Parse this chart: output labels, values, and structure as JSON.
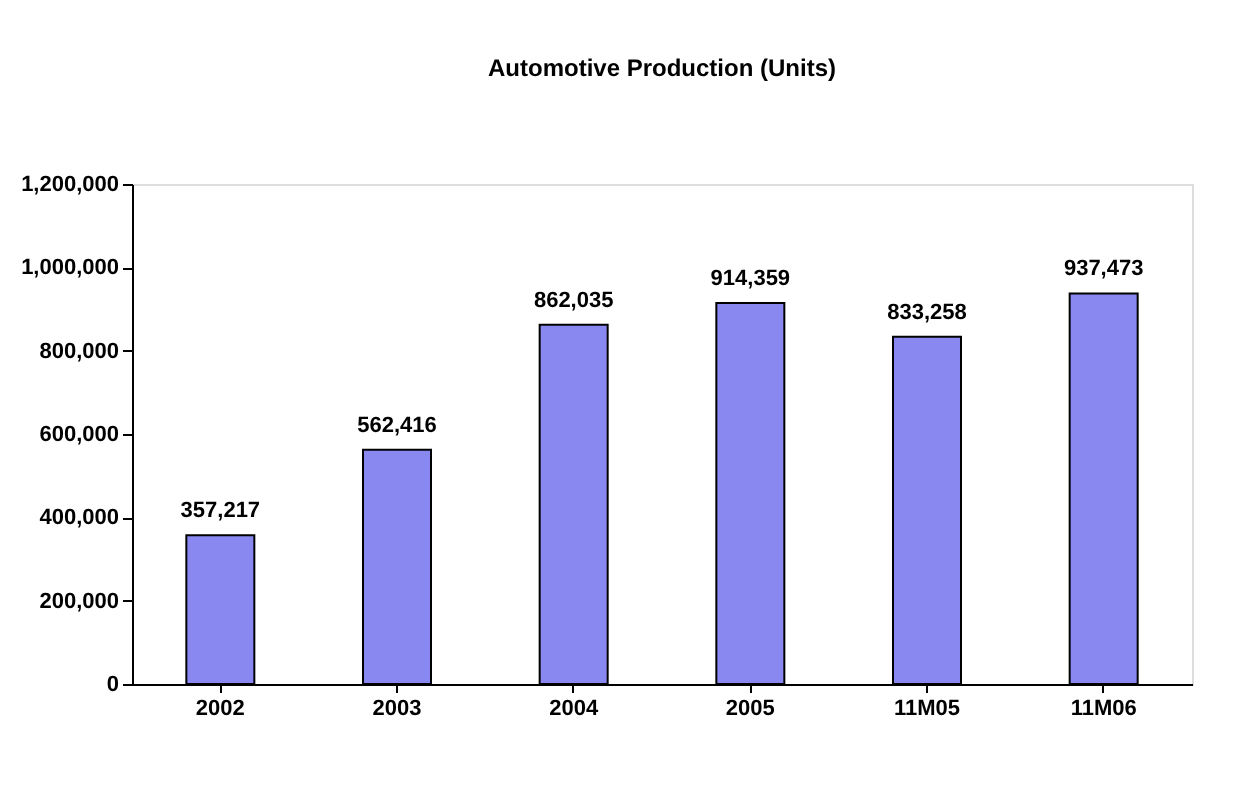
{
  "chart_data": {
    "type": "bar",
    "title": "Automotive Production (Units)",
    "categories": [
      "2002",
      "2003",
      "2004",
      "2005",
      "11M05",
      "11M06"
    ],
    "values": [
      357217,
      562416,
      862035,
      914359,
      833258,
      937473
    ],
    "value_labels": [
      "357,217",
      "562,416",
      "862,035",
      "914,359",
      "833,258",
      "937,473"
    ],
    "color": "#8888f0",
    "ylim": [
      0,
      1200000
    ],
    "yticks": [
      0,
      {
        "value": 200000,
        "label": "200,000"
      },
      {
        "value": 400000,
        "label": "400,000"
      },
      {
        "value": 600000,
        "label": "600,000"
      },
      {
        "value": 800000,
        "label": "800,000"
      },
      {
        "value": 1000000,
        "label": "1,000,000"
      },
      {
        "value": 1200000,
        "label": "1,200,000"
      }
    ],
    "grid": false
  }
}
